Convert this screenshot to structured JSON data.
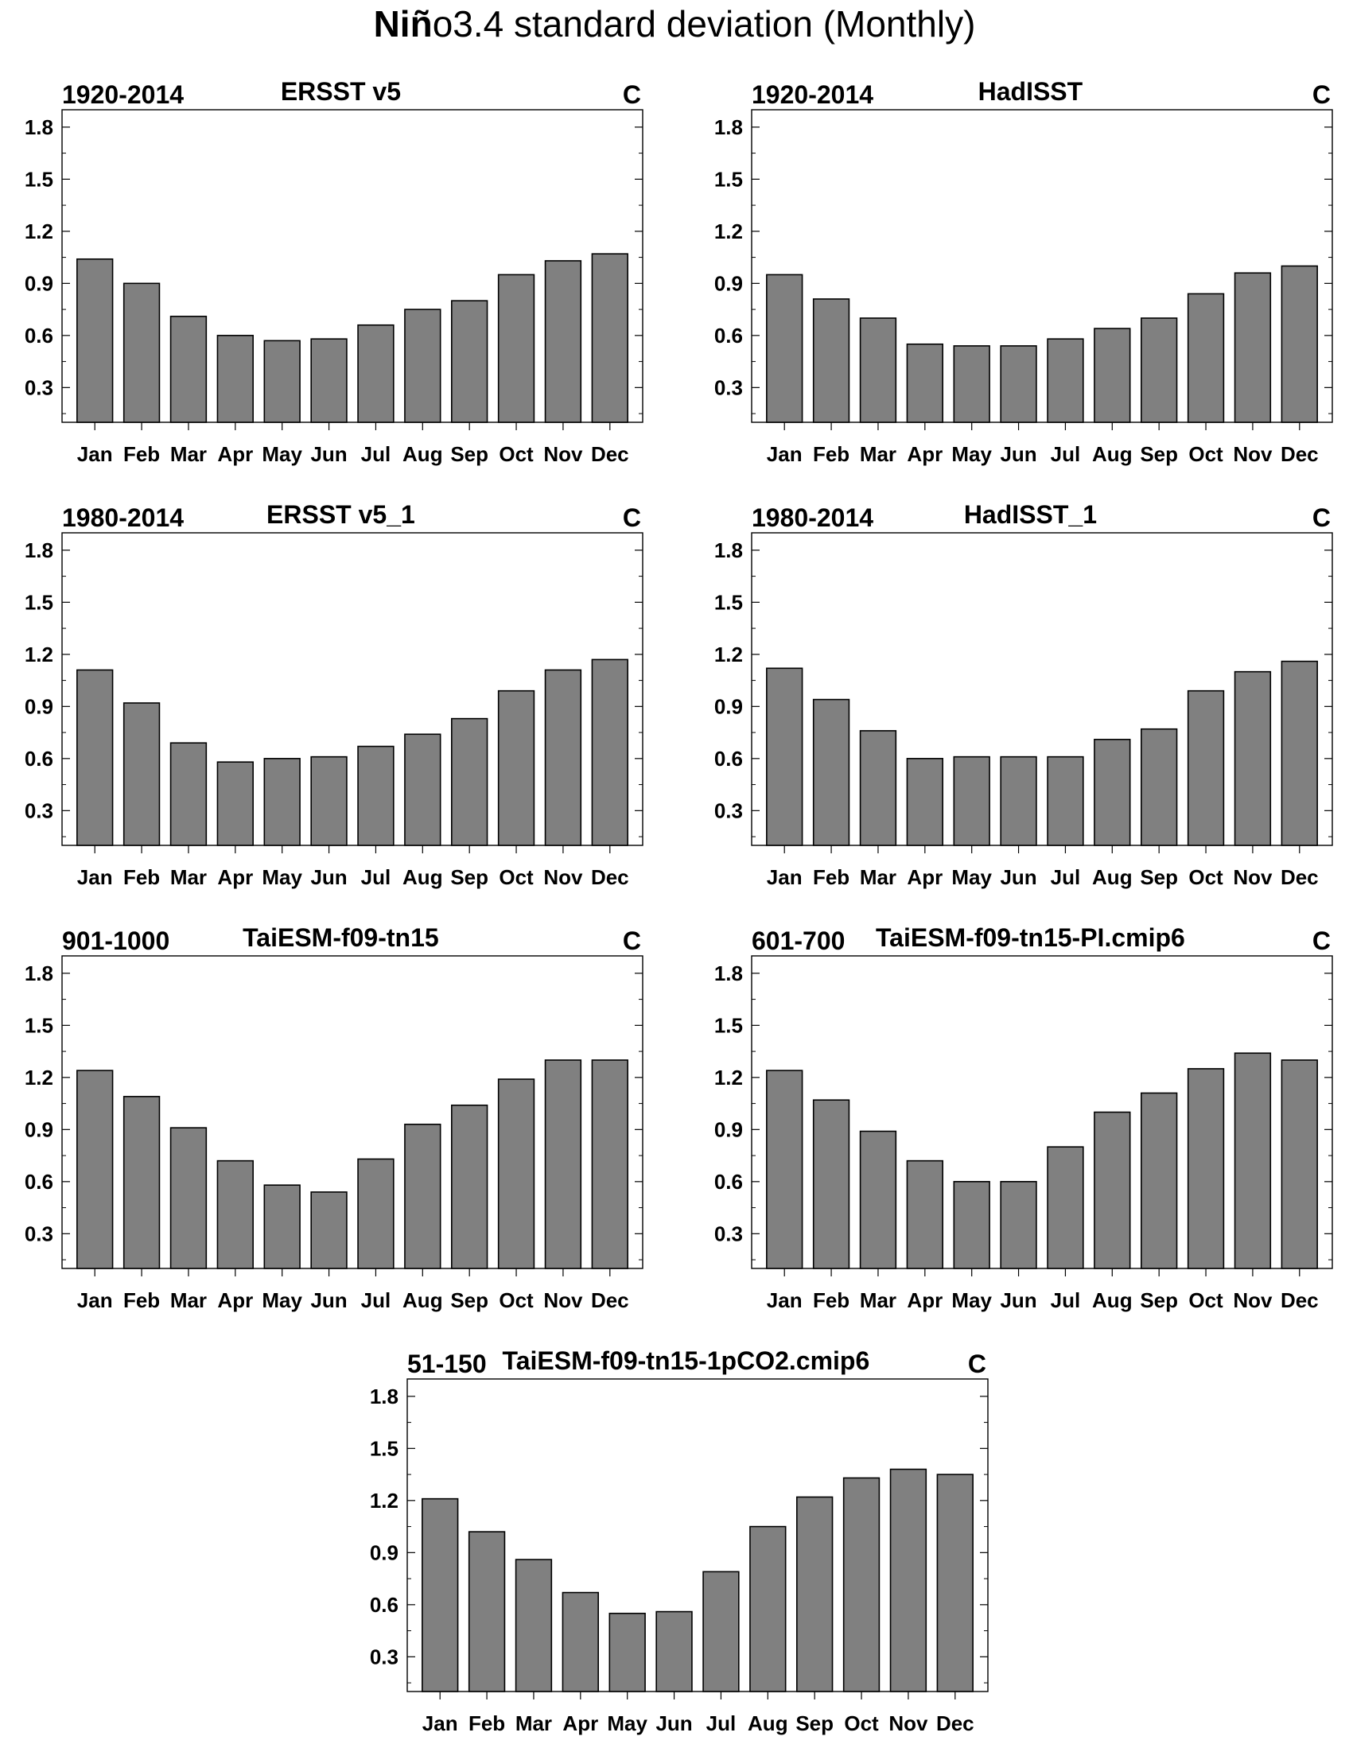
{
  "figure": {
    "title_bold": "Niñ",
    "title_rest": "o3.4 standard deviation (Monthly)"
  },
  "colors": {
    "bar_fill": "#808080",
    "bar_stroke": "#000000",
    "frame": "#000000"
  },
  "chart_data": [
    {
      "type": "bar",
      "period": "1920-2014",
      "title": "ERSST v5",
      "units": "C",
      "categories": [
        "Jan",
        "Feb",
        "Mar",
        "Apr",
        "May",
        "Jun",
        "Jul",
        "Aug",
        "Sep",
        "Oct",
        "Nov",
        "Dec"
      ],
      "values": [
        1.04,
        0.9,
        0.71,
        0.6,
        0.57,
        0.58,
        0.66,
        0.75,
        0.8,
        0.95,
        1.03,
        1.07
      ],
      "ylim": [
        0.1,
        1.9
      ],
      "yticks": [
        "0.3",
        "0.6",
        "0.9",
        "1.2",
        "1.5",
        "1.8"
      ],
      "grid": false
    },
    {
      "type": "bar",
      "period": "1920-2014",
      "title": "HadISST",
      "units": "C",
      "categories": [
        "Jan",
        "Feb",
        "Mar",
        "Apr",
        "May",
        "Jun",
        "Jul",
        "Aug",
        "Sep",
        "Oct",
        "Nov",
        "Dec"
      ],
      "values": [
        0.95,
        0.81,
        0.7,
        0.55,
        0.54,
        0.54,
        0.58,
        0.64,
        0.7,
        0.84,
        0.96,
        1.0
      ],
      "ylim": [
        0.1,
        1.9
      ],
      "yticks": [
        "0.3",
        "0.6",
        "0.9",
        "1.2",
        "1.5",
        "1.8"
      ],
      "grid": false
    },
    {
      "type": "bar",
      "period": "1980-2014",
      "title": "ERSST v5_1",
      "units": "C",
      "categories": [
        "Jan",
        "Feb",
        "Mar",
        "Apr",
        "May",
        "Jun",
        "Jul",
        "Aug",
        "Sep",
        "Oct",
        "Nov",
        "Dec"
      ],
      "values": [
        1.11,
        0.92,
        0.69,
        0.58,
        0.6,
        0.61,
        0.67,
        0.74,
        0.83,
        0.99,
        1.11,
        1.17
      ],
      "ylim": [
        0.1,
        1.9
      ],
      "yticks": [
        "0.3",
        "0.6",
        "0.9",
        "1.2",
        "1.5",
        "1.8"
      ],
      "grid": false
    },
    {
      "type": "bar",
      "period": "1980-2014",
      "title": "HadISST_1",
      "units": "C",
      "categories": [
        "Jan",
        "Feb",
        "Mar",
        "Apr",
        "May",
        "Jun",
        "Jul",
        "Aug",
        "Sep",
        "Oct",
        "Nov",
        "Dec"
      ],
      "values": [
        1.12,
        0.94,
        0.76,
        0.6,
        0.61,
        0.61,
        0.61,
        0.71,
        0.77,
        0.99,
        1.1,
        1.16
      ],
      "ylim": [
        0.1,
        1.9
      ],
      "yticks": [
        "0.3",
        "0.6",
        "0.9",
        "1.2",
        "1.5",
        "1.8"
      ],
      "grid": false
    },
    {
      "type": "bar",
      "period": "901-1000",
      "title": "TaiESM-f09-tn15",
      "units": "C",
      "categories": [
        "Jan",
        "Feb",
        "Mar",
        "Apr",
        "May",
        "Jun",
        "Jul",
        "Aug",
        "Sep",
        "Oct",
        "Nov",
        "Dec"
      ],
      "values": [
        1.24,
        1.09,
        0.91,
        0.72,
        0.58,
        0.54,
        0.73,
        0.93,
        1.04,
        1.19,
        1.3,
        1.3
      ],
      "ylim": [
        0.1,
        1.9
      ],
      "yticks": [
        "0.3",
        "0.6",
        "0.9",
        "1.2",
        "1.5",
        "1.8"
      ],
      "grid": false
    },
    {
      "type": "bar",
      "period": "601-700",
      "title": "TaiESM-f09-tn15-PI.cmip6",
      "units": "C",
      "categories": [
        "Jan",
        "Feb",
        "Mar",
        "Apr",
        "May",
        "Jun",
        "Jul",
        "Aug",
        "Sep",
        "Oct",
        "Nov",
        "Dec"
      ],
      "values": [
        1.24,
        1.07,
        0.89,
        0.72,
        0.6,
        0.6,
        0.8,
        1.0,
        1.11,
        1.25,
        1.34,
        1.3
      ],
      "ylim": [
        0.1,
        1.9
      ],
      "yticks": [
        "0.3",
        "0.6",
        "0.9",
        "1.2",
        "1.5",
        "1.8"
      ],
      "grid": false
    },
    {
      "type": "bar",
      "period": "51-150",
      "title": "TaiESM-f09-tn15-1pCO2.cmip6",
      "units": "C",
      "categories": [
        "Jan",
        "Feb",
        "Mar",
        "Apr",
        "May",
        "Jun",
        "Jul",
        "Aug",
        "Sep",
        "Oct",
        "Nov",
        "Dec"
      ],
      "values": [
        1.21,
        1.02,
        0.86,
        0.67,
        0.55,
        0.56,
        0.79,
        1.05,
        1.22,
        1.33,
        1.38,
        1.35
      ],
      "ylim": [
        0.1,
        1.9
      ],
      "yticks": [
        "0.3",
        "0.6",
        "0.9",
        "1.2",
        "1.5",
        "1.8"
      ],
      "grid": false
    }
  ]
}
